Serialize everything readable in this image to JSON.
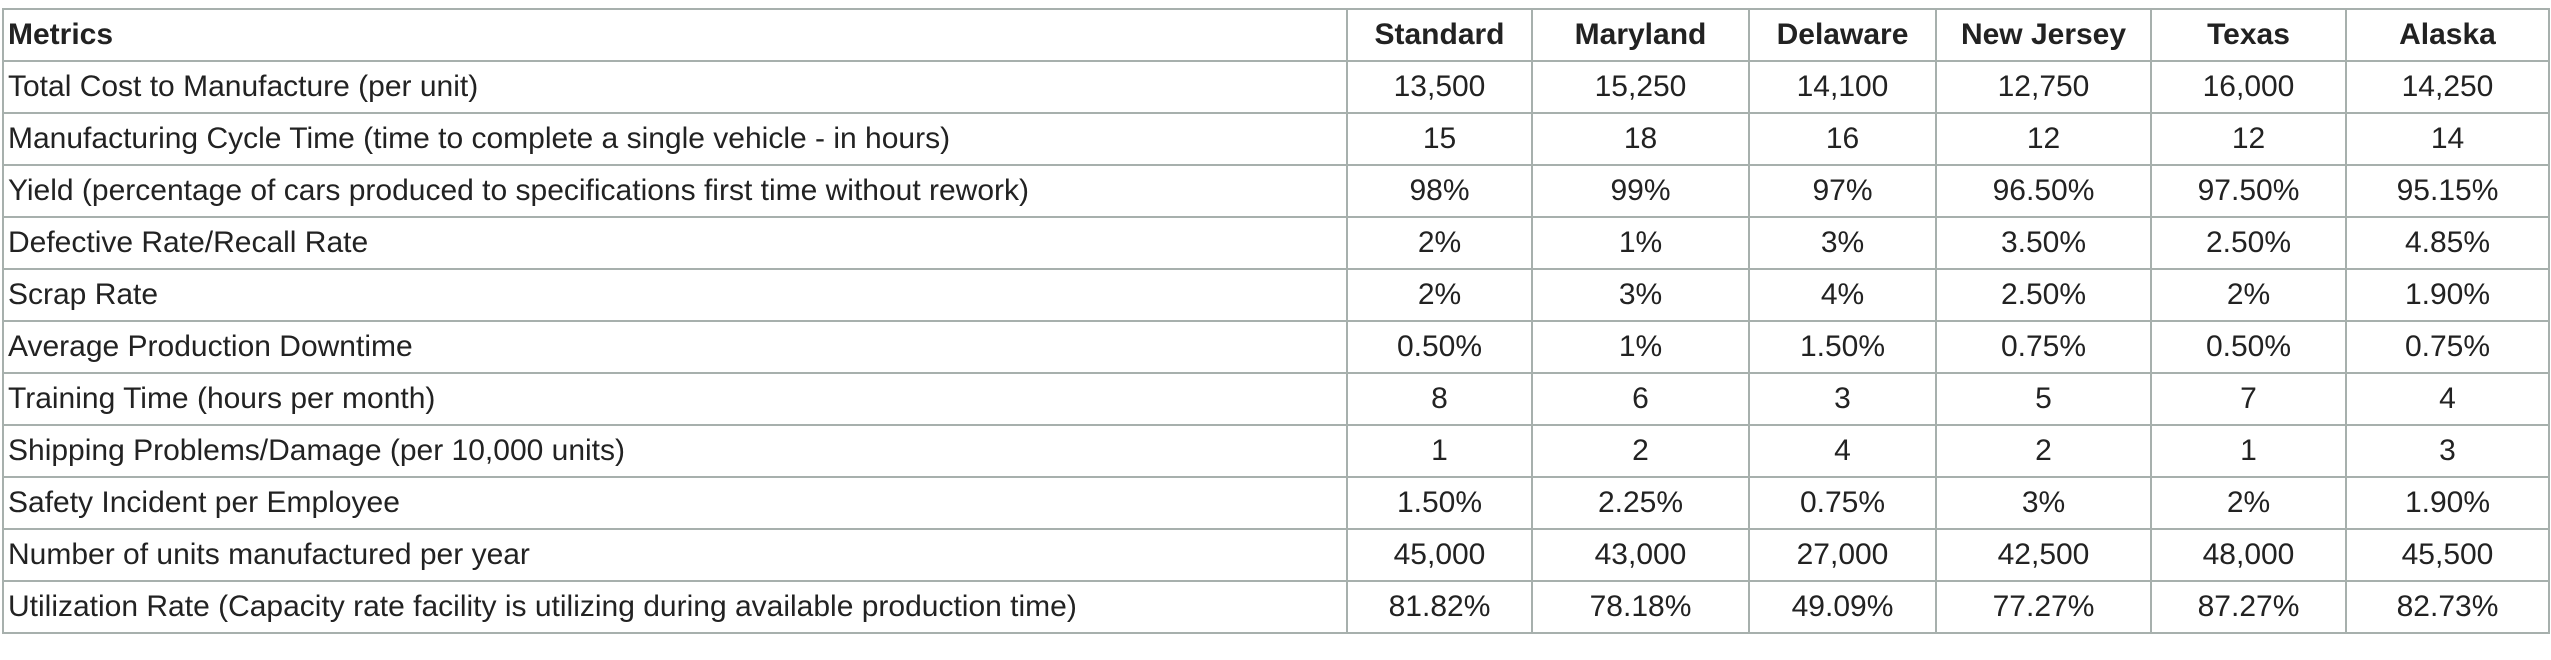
{
  "table": {
    "header": [
      "Metrics",
      "Standard",
      "Maryland",
      "Delaware",
      "New Jersey",
      "Texas",
      "Alaska"
    ],
    "rows": [
      [
        "Total Cost to Manufacture (per unit)",
        "13,500",
        "15,250",
        "14,100",
        "12,750",
        "16,000",
        "14,250"
      ],
      [
        "Manufacturing Cycle Time (time to complete a single vehicle - in hours)",
        "15",
        "18",
        "16",
        "12",
        "12",
        "14"
      ],
      [
        "Yield (percentage of cars produced to specifications first time without rework)",
        "98%",
        "99%",
        "97%",
        "96.50%",
        "97.50%",
        "95.15%"
      ],
      [
        "Defective Rate/Recall Rate",
        "2%",
        "1%",
        "3%",
        "3.50%",
        "2.50%",
        "4.85%"
      ],
      [
        "Scrap Rate",
        "2%",
        "3%",
        "4%",
        "2.50%",
        "2%",
        "1.90%"
      ],
      [
        "Average Production Downtime",
        "0.50%",
        "1%",
        "1.50%",
        "0.75%",
        "0.50%",
        "0.75%"
      ],
      [
        "Training Time (hours per month)",
        "8",
        "6",
        "3",
        "5",
        "7",
        "4"
      ],
      [
        "Shipping Problems/Damage (per 10,000 units)",
        "1",
        "2",
        "4",
        "2",
        "1",
        "3"
      ],
      [
        "Safety Incident per Employee",
        "1.50%",
        "2.25%",
        "0.75%",
        "3%",
        "2%",
        "1.90%"
      ],
      [
        "Number of units manufactured per year",
        "45,000",
        "43,000",
        "27,000",
        "42,500",
        "48,000",
        "45,500"
      ],
      [
        "Utilization Rate (Capacity rate facility is utilizing during available production time)",
        "81.82%",
        "78.18%",
        "49.09%",
        "77.27%",
        "87.27%",
        "82.73%"
      ]
    ]
  }
}
